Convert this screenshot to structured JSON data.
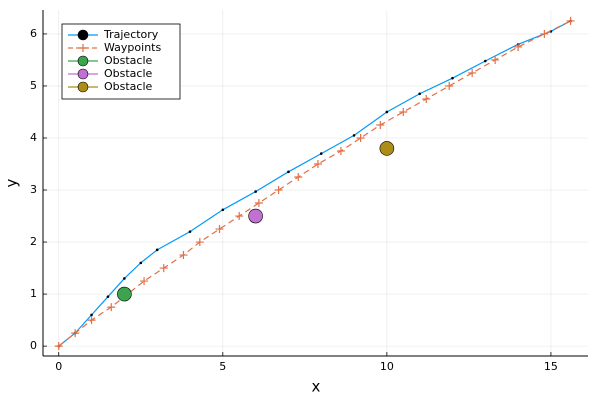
{
  "chart_data": {
    "type": "line",
    "xlabel": "x",
    "ylabel": "y",
    "xlim": [
      -0.48,
      16.13
    ],
    "ylim": [
      -0.19,
      6.46
    ],
    "xticks": [
      0,
      5,
      10,
      15
    ],
    "yticks": [
      0,
      1,
      2,
      3,
      4,
      5,
      6
    ],
    "grid": true,
    "legend": "top-left",
    "series": [
      {
        "name": "Trajectory",
        "color": "#009af9",
        "line": "solid",
        "marker": "circle",
        "marker_color": "#000000",
        "x": [
          0,
          0.5,
          1,
          1.5,
          2,
          2.5,
          3,
          4,
          5,
          6,
          7,
          8,
          9,
          10,
          11,
          12,
          13,
          14,
          15,
          15.6
        ],
        "values": [
          0,
          0.25,
          0.6,
          0.95,
          1.3,
          1.6,
          1.85,
          2.2,
          2.62,
          2.97,
          3.35,
          3.7,
          4.05,
          4.5,
          4.85,
          5.15,
          5.48,
          5.8,
          6.05,
          6.25
        ]
      },
      {
        "name": "Waypoints",
        "color": "#e26f46",
        "line": "dashed",
        "marker": "cross",
        "marker_color": "#e26f46",
        "x": [
          0,
          0.5,
          1,
          1.6,
          2.1,
          2.6,
          3.2,
          3.8,
          4.3,
          4.9,
          5.5,
          6.1,
          6.7,
          7.3,
          7.9,
          8.6,
          9.2,
          9.8,
          10.5,
          11.2,
          11.9,
          12.6,
          13.3,
          14.0,
          14.8,
          15.6
        ],
        "values": [
          0,
          0.25,
          0.5,
          0.75,
          1,
          1.25,
          1.5,
          1.75,
          2,
          2.25,
          2.5,
          2.75,
          3,
          3.25,
          3.5,
          3.75,
          4,
          4.25,
          4.5,
          4.75,
          5,
          5.25,
          5.5,
          5.75,
          6,
          6.25
        ]
      },
      {
        "name": "Obstacle",
        "color": "#3da44d",
        "line": null,
        "marker": "circle",
        "marker_color": "#3da44d",
        "x": [
          2
        ],
        "values": [
          1
        ]
      },
      {
        "name": "Obstacle",
        "color": "#c271d2",
        "line": null,
        "marker": "circle",
        "marker_color": "#c271d2",
        "x": [
          6
        ],
        "values": [
          2.5
        ]
      },
      {
        "name": "Obstacle",
        "color": "#ac8d18",
        "line": null,
        "marker": "circle",
        "marker_color": "#ac8d18",
        "x": [
          10
        ],
        "values": [
          3.8
        ]
      }
    ]
  }
}
